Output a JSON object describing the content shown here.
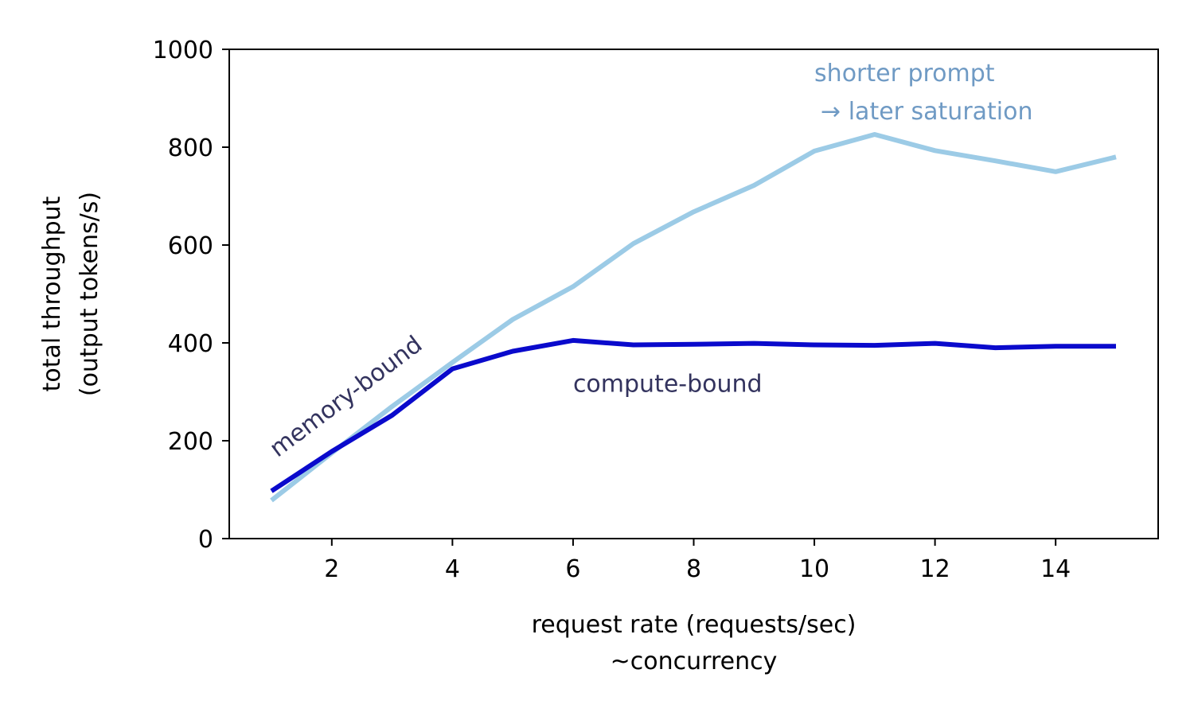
{
  "chart_data": {
    "type": "line",
    "xlabel": [
      "request rate (requests/sec)",
      "~concurrency"
    ],
    "ylabel": [
      "total throughput",
      "(output tokens/s)"
    ],
    "xlim": [
      0.3,
      15.7
    ],
    "ylim": [
      0,
      1000
    ],
    "xticks": [
      2,
      4,
      6,
      8,
      10,
      12,
      14
    ],
    "yticks": [
      0,
      200,
      400,
      600,
      800,
      1000
    ],
    "grid": false,
    "x": [
      1,
      2,
      3,
      4,
      5,
      6,
      7,
      8,
      9,
      10,
      11,
      12,
      13,
      14,
      15
    ],
    "series": [
      {
        "color": "#9ccbe6",
        "values": [
          78,
          175,
          270,
          360,
          448,
          515,
          603,
          668,
          722,
          792,
          826,
          793,
          772,
          750,
          780
        ]
      },
      {
        "color": "#0a0acc",
        "values": [
          97,
          178,
          252,
          347,
          383,
          405,
          396,
          397,
          399,
          396,
          395,
          399,
          390,
          393,
          393
        ]
      }
    ],
    "annotations": [
      {
        "lines": [
          "memory-bound"
        ],
        "x": 1.1,
        "y": 165,
        "rotation": -37,
        "color": "#33335e"
      },
      {
        "lines": [
          "compute-bound"
        ],
        "x": 6.0,
        "y": 300,
        "rotation": 0,
        "color": "#33335e"
      },
      {
        "lines": [
          "shorter prompt",
          "→ later saturation"
        ],
        "x": 10.0,
        "y": 935,
        "rotation": 0,
        "color": "#6f9ac4"
      }
    ]
  }
}
